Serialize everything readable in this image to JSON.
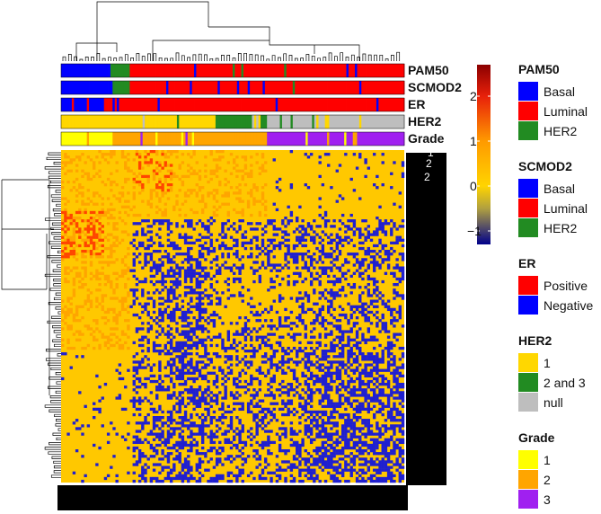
{
  "chart_data": {
    "type": "heatmap",
    "title": "",
    "description_free": true,
    "annotation_tracks": [
      {
        "name": "PAM50",
        "pattern": [
          [
            "Basal",
            14
          ],
          [
            "HER2",
            6
          ],
          [
            "Luminal",
            80
          ]
        ]
      },
      {
        "name": "SCMOD2",
        "pattern": [
          [
            "Basal",
            15
          ],
          [
            "HER2",
            5
          ],
          [
            "Luminal",
            80
          ]
        ]
      },
      {
        "name": "ER",
        "pattern": [
          [
            "Negative",
            12
          ],
          [
            "Positive",
            88
          ]
        ]
      },
      {
        "name": "HER2",
        "pattern": [
          [
            "1",
            45
          ],
          [
            "2 and 3",
            15
          ],
          [
            "null",
            40
          ]
        ]
      },
      {
        "name": "Grade",
        "pattern": [
          [
            "1",
            15
          ],
          [
            "2",
            45
          ],
          [
            "3",
            40
          ]
        ]
      }
    ],
    "colorbar": {
      "ticks": [
        2,
        1,
        0,
        -1
      ],
      "range": [
        -1.3,
        2.7
      ],
      "stops": [
        {
          "value": 2.7,
          "color": "#8b0000"
        },
        {
          "value": 2.0,
          "color": "#e8200a"
        },
        {
          "value": 1.0,
          "color": "#ff9a00"
        },
        {
          "value": 0.0,
          "color": "#ffd400"
        },
        {
          "value": -0.5,
          "color": "#b0a040"
        },
        {
          "value": -1.3,
          "color": "#00008b"
        }
      ]
    },
    "cell_colors": {
      "base": "#ffc800",
      "light": "#ffd400",
      "orange": "#ffa500",
      "red": "#ff4500",
      "blue": "#1f1fd0"
    },
    "legends": [
      {
        "title": "PAM50",
        "items": [
          {
            "label": "Basal",
            "color": "#0000ff"
          },
          {
            "label": "Luminal",
            "color": "#ff0000"
          },
          {
            "label": "HER2",
            "color": "#228b22"
          }
        ]
      },
      {
        "title": "SCMOD2",
        "items": [
          {
            "label": "Basal",
            "color": "#0000ff"
          },
          {
            "label": "Luminal",
            "color": "#ff0000"
          },
          {
            "label": "HER2",
            "color": "#228b22"
          }
        ]
      },
      {
        "title": "ER",
        "items": [
          {
            "label": "Positive",
            "color": "#ff0000"
          },
          {
            "label": "Negative",
            "color": "#0000ff"
          }
        ]
      },
      {
        "title": "HER2",
        "items": [
          {
            "label": "1",
            "color": "#ffd700"
          },
          {
            "label": "2 and 3",
            "color": "#228b22"
          },
          {
            "label": "null",
            "color": "#bebebe"
          }
        ]
      },
      {
        "title": "Grade",
        "items": [
          {
            "label": "1",
            "color": "#ffff00"
          },
          {
            "label": "2",
            "color": "#ffa500"
          },
          {
            "label": "3",
            "color": "#a020f0"
          }
        ]
      }
    ],
    "row_labels_visible": [
      "1",
      "2",
      "2"
    ],
    "grid": false,
    "legend_placement": "right"
  }
}
